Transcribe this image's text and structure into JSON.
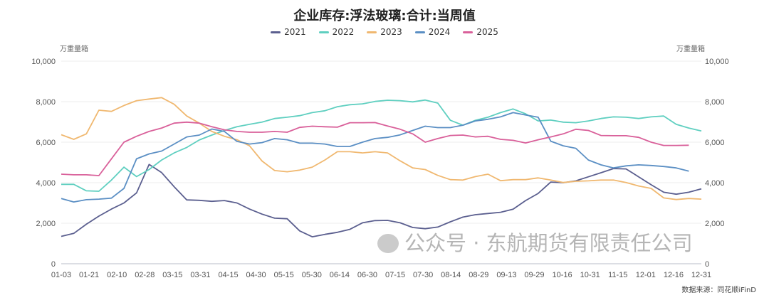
{
  "chart_data": {
    "type": "line",
    "title": "企业库存:浮法玻璃:合计:当周值",
    "ylabel_left": "万重量箱",
    "ylabel_right": "万重量箱",
    "ylim": [
      0,
      10000
    ],
    "yticks": [
      "0",
      "2,000",
      "4,000",
      "6,000",
      "8,000",
      "10,000"
    ],
    "ytick_values": [
      0,
      2000,
      4000,
      6000,
      8000,
      10000
    ],
    "xlabels": [
      "01-03",
      "01-21",
      "02-10",
      "02-28",
      "03-15",
      "03-31",
      "04-15",
      "04-30",
      "05-15",
      "05-30",
      "06-14",
      "06-30",
      "07-15",
      "07-30",
      "08-14",
      "08-29",
      "09-13",
      "09-29",
      "10-16",
      "10-31",
      "11-15",
      "12-01",
      "12-16",
      "12-31"
    ],
    "x_weeks": 52,
    "grid": true,
    "legend_position": "top-center",
    "series": [
      {
        "name": "2021",
        "color": "#5b5f8f",
        "values": [
          1350,
          1500,
          1950,
          2350,
          2700,
          3000,
          3500,
          4900,
          4500,
          3800,
          3150,
          3130,
          3080,
          3120,
          3000,
          2700,
          2450,
          2250,
          2220,
          1620,
          1330,
          1450,
          1550,
          1700,
          2020,
          2130,
          2140,
          2020,
          1790,
          1730,
          1810,
          2070,
          2300,
          2420,
          2480,
          2540,
          2690,
          3120,
          3470,
          4030,
          4000,
          4090,
          4290,
          4490,
          4700,
          4680,
          4290,
          3900,
          3530,
          3430,
          3530,
          3700
        ]
      },
      {
        "name": "2022",
        "color": "#5fcfc0",
        "values": [
          3920,
          3920,
          3600,
          3580,
          4130,
          4770,
          4300,
          4650,
          5120,
          5470,
          5740,
          6110,
          6350,
          6580,
          6760,
          6880,
          6990,
          7170,
          7230,
          7310,
          7460,
          7550,
          7750,
          7850,
          7890,
          8010,
          8070,
          8050,
          7990,
          8080,
          7930,
          7080,
          6840,
          7080,
          7230,
          7460,
          7640,
          7400,
          7050,
          7090,
          6990,
          6960,
          7050,
          7170,
          7250,
          7230,
          7170,
          7250,
          7290,
          6880,
          6700,
          6550
        ]
      },
      {
        "name": "2023",
        "color": "#f0b870",
        "values": [
          6370,
          6140,
          6410,
          7580,
          7520,
          7810,
          8050,
          8130,
          8200,
          7870,
          7290,
          6940,
          6530,
          6290,
          6120,
          5820,
          5070,
          4600,
          4540,
          4620,
          4770,
          5120,
          5530,
          5530,
          5470,
          5530,
          5470,
          5080,
          4730,
          4650,
          4360,
          4150,
          4130,
          4300,
          4420,
          4100,
          4150,
          4150,
          4240,
          4130,
          4010,
          4070,
          4090,
          4130,
          4130,
          4010,
          3840,
          3720,
          3250,
          3170,
          3220,
          3190
        ]
      },
      {
        "name": "2024",
        "color": "#5b8fc4",
        "values": [
          3220,
          3050,
          3160,
          3190,
          3240,
          3720,
          5180,
          5420,
          5560,
          5910,
          6260,
          6350,
          6650,
          6530,
          6040,
          5910,
          5980,
          6180,
          6120,
          5950,
          5950,
          5910,
          5790,
          5790,
          6000,
          6180,
          6240,
          6360,
          6580,
          6790,
          6720,
          6720,
          6840,
          7050,
          7130,
          7250,
          7460,
          7340,
          7230,
          6050,
          5820,
          5700,
          5120,
          4880,
          4730,
          4830,
          4880,
          4850,
          4800,
          4730,
          4570
        ]
      },
      {
        "name": "2025",
        "color": "#d9609a",
        "values": [
          4420,
          4390,
          4390,
          4350,
          5180,
          6000,
          6290,
          6530,
          6700,
          6940,
          6990,
          6940,
          6760,
          6610,
          6530,
          6490,
          6490,
          6530,
          6490,
          6730,
          6790,
          6760,
          6740,
          6960,
          6960,
          6970,
          6800,
          6640,
          6410,
          6000,
          6180,
          6330,
          6350,
          6260,
          6290,
          6140,
          6090,
          5960,
          6120,
          6260,
          6410,
          6640,
          6580,
          6330,
          6320,
          6320,
          6240,
          6000,
          5840,
          5840,
          5850
        ]
      }
    ]
  },
  "source": "数据来源：同花顺iFinD",
  "watermark": "公众号 · 东航期货有限责任公司"
}
